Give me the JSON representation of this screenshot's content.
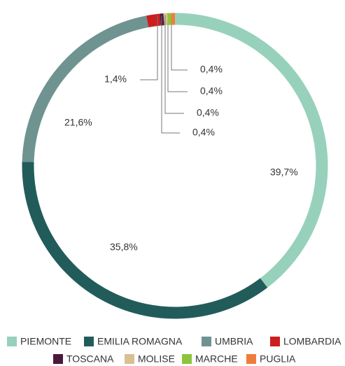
{
  "chart_data": {
    "type": "donut",
    "categories": [
      "PIEMONTE",
      "EMILIA ROMAGNA",
      "UMBRIA",
      "LOMBARDIA",
      "TOSCANA",
      "MOLISE",
      "MARCHE",
      "PUGLIA"
    ],
    "values": [
      39.7,
      35.8,
      21.6,
      1.4,
      0.4,
      0.4,
      0.4,
      0.4
    ],
    "value_labels": [
      "39,7%",
      "35,8%",
      "21,6%",
      "1,4%",
      "0,4%",
      "0,4%",
      "0,4%",
      "0,4%"
    ],
    "colors": [
      "#97d1bb",
      "#225c5a",
      "#6f9391",
      "#cc1e1e",
      "#4a1a3a",
      "#d8c092",
      "#8cc43c",
      "#f07c3c"
    ],
    "legend": "bottom"
  }
}
